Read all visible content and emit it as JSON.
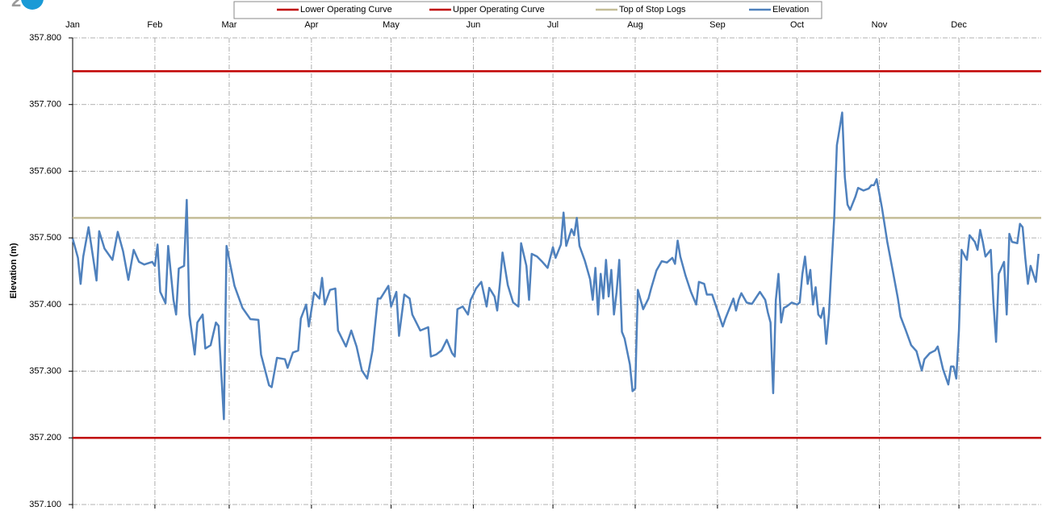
{
  "chart_data": {
    "type": "line",
    "y_axis_label": "Elevation (m)",
    "xlim": [
      0,
      365
    ],
    "xticks": [
      {
        "value": 0,
        "label": "Jan"
      },
      {
        "value": 31,
        "label": "Feb"
      },
      {
        "value": 59,
        "label": "Mar"
      },
      {
        "value": 90,
        "label": "Apr"
      },
      {
        "value": 120,
        "label": "May"
      },
      {
        "value": 151,
        "label": "Jun"
      },
      {
        "value": 181,
        "label": "Jul"
      },
      {
        "value": 212,
        "label": "Aug"
      },
      {
        "value": 243,
        "label": "Sep"
      },
      {
        "value": 273,
        "label": "Oct"
      },
      {
        "value": 304,
        "label": "Nov"
      },
      {
        "value": 334,
        "label": "Dec"
      }
    ],
    "ylim": [
      357.1,
      357.8
    ],
    "yticks": [
      {
        "value": 357.1,
        "label": "357.100"
      },
      {
        "value": 357.2,
        "label": "357.200"
      },
      {
        "value": 357.3,
        "label": "357.300"
      },
      {
        "value": 357.4,
        "label": "357.400"
      },
      {
        "value": 357.5,
        "label": "357.500"
      },
      {
        "value": 357.6,
        "label": "357.600"
      },
      {
        "value": 357.7,
        "label": "357.700"
      },
      {
        "value": 357.8,
        "label": "357.800"
      }
    ],
    "grid": true,
    "x": [
      0,
      2,
      3,
      4,
      6,
      9,
      10,
      12,
      15,
      17,
      19,
      21,
      23,
      25,
      27,
      30,
      31,
      32,
      33,
      35,
      36,
      38,
      39,
      40,
      42,
      43,
      44,
      46,
      47,
      49,
      50,
      52,
      54,
      55,
      57,
      58,
      61,
      64,
      67,
      70,
      71,
      74,
      75,
      77,
      80,
      81,
      83,
      85,
      86,
      88,
      89,
      91,
      93,
      94,
      95,
      97,
      99,
      100,
      103,
      105,
      107,
      109,
      111,
      113,
      115,
      116,
      119,
      120,
      122,
      123,
      125,
      127,
      128,
      131,
      134,
      135,
      137,
      139,
      141,
      143,
      144,
      145,
      147,
      149,
      150,
      151,
      152,
      154,
      156,
      157,
      159,
      160,
      161,
      162,
      164,
      166,
      168,
      169,
      171,
      172,
      173,
      175,
      177,
      179,
      181,
      182,
      184,
      185,
      186,
      188,
      189,
      190,
      191,
      193,
      195,
      196,
      197,
      198,
      199,
      200,
      201,
      202,
      203,
      204,
      205,
      206,
      207,
      208,
      210,
      211,
      212,
      213,
      215,
      217,
      218,
      220,
      222,
      224,
      226,
      227,
      228,
      229,
      231,
      233,
      235,
      236,
      238,
      239,
      241,
      243,
      245,
      246,
      248,
      249,
      250,
      251,
      252,
      254,
      256,
      258,
      259,
      261,
      262,
      263,
      264,
      265,
      266,
      267,
      268,
      269,
      271,
      273,
      274,
      275,
      276,
      277,
      278,
      279,
      280,
      281,
      282,
      283,
      284,
      285,
      286,
      287,
      288,
      289,
      290,
      291,
      292,
      293,
      295,
      296,
      298,
      300,
      301,
      302,
      303,
      305,
      307,
      309,
      311,
      312,
      314,
      316,
      318,
      320,
      321,
      323,
      325,
      326,
      328,
      330,
      331,
      332,
      333,
      334,
      335,
      337,
      338,
      340,
      341,
      342,
      343,
      344,
      346,
      347,
      348,
      349,
      351,
      352,
      353,
      354,
      356,
      357,
      358,
      359,
      360,
      361,
      362,
      363,
      364
    ],
    "series": [
      {
        "name": "Lower Operating Curve",
        "color": "#c00000",
        "value": 357.2
      },
      {
        "name": "Upper Operating Curve",
        "color": "#c00000",
        "value": 357.75
      },
      {
        "name": "Top of Stop Logs",
        "color": "#c4bd97",
        "value": 357.53
      },
      {
        "name": "Elevation",
        "color": "#4f81bd",
        "values": [
          357.499,
          357.47,
          357.431,
          357.472,
          357.516,
          357.436,
          357.51,
          357.484,
          357.467,
          357.509,
          357.48,
          357.437,
          357.482,
          357.464,
          357.46,
          357.464,
          357.458,
          357.49,
          357.419,
          357.402,
          357.488,
          357.407,
          357.385,
          357.454,
          357.458,
          357.557,
          357.385,
          357.325,
          357.373,
          357.385,
          357.334,
          357.339,
          357.373,
          357.368,
          357.228,
          357.488,
          357.428,
          357.395,
          357.378,
          357.377,
          357.325,
          357.279,
          357.276,
          357.32,
          357.318,
          357.305,
          357.328,
          357.331,
          357.379,
          357.4,
          357.367,
          357.418,
          357.409,
          357.44,
          357.4,
          357.422,
          357.424,
          357.361,
          357.337,
          357.361,
          357.337,
          357.301,
          357.289,
          357.331,
          357.409,
          357.409,
          357.428,
          357.397,
          357.419,
          357.353,
          357.415,
          357.409,
          357.385,
          357.361,
          357.366,
          357.322,
          357.325,
          357.331,
          357.347,
          357.327,
          357.322,
          357.393,
          357.397,
          357.385,
          357.407,
          357.415,
          357.424,
          357.434,
          357.397,
          357.425,
          357.412,
          357.391,
          357.431,
          357.478,
          357.429,
          357.403,
          357.397,
          357.492,
          357.458,
          357.407,
          357.476,
          357.472,
          357.464,
          357.455,
          357.486,
          357.47,
          357.49,
          357.538,
          357.488,
          357.513,
          357.504,
          357.53,
          357.488,
          357.466,
          357.438,
          357.407,
          357.455,
          357.385,
          357.446,
          357.409,
          357.467,
          357.412,
          357.452,
          357.385,
          357.419,
          357.467,
          357.359,
          357.349,
          357.31,
          357.27,
          357.274,
          357.422,
          357.393,
          357.409,
          357.424,
          357.451,
          357.465,
          357.463,
          357.47,
          357.461,
          357.496,
          357.472,
          357.443,
          357.419,
          357.4,
          357.434,
          357.431,
          357.415,
          357.415,
          357.391,
          357.367,
          357.379,
          357.399,
          357.409,
          357.391,
          357.407,
          357.417,
          357.403,
          357.401,
          357.413,
          357.419,
          357.407,
          357.388,
          357.373,
          357.267,
          357.407,
          357.446,
          357.373,
          357.395,
          357.397,
          357.403,
          357.4,
          357.403,
          357.446,
          357.472,
          357.431,
          357.452,
          357.4,
          357.426,
          357.385,
          357.38,
          357.395,
          357.341,
          357.385,
          357.458,
          357.53,
          357.639,
          357.663,
          357.688,
          357.591,
          357.55,
          357.542,
          357.562,
          357.575,
          357.571,
          357.574,
          357.579,
          357.579,
          357.588,
          357.545,
          357.494,
          357.452,
          357.409,
          357.382,
          357.361,
          357.339,
          357.33,
          357.301,
          357.318,
          357.327,
          357.331,
          357.337,
          357.303,
          357.28,
          357.307,
          357.307,
          357.289,
          357.361,
          357.482,
          357.467,
          357.504,
          357.494,
          357.482,
          357.512,
          357.494,
          357.472,
          357.482,
          357.403,
          357.344,
          357.446,
          357.464,
          357.385,
          357.506,
          357.494,
          357.492,
          357.521,
          357.516,
          357.47,
          357.431,
          357.458,
          357.446,
          357.434,
          357.476
        ]
      }
    ]
  }
}
